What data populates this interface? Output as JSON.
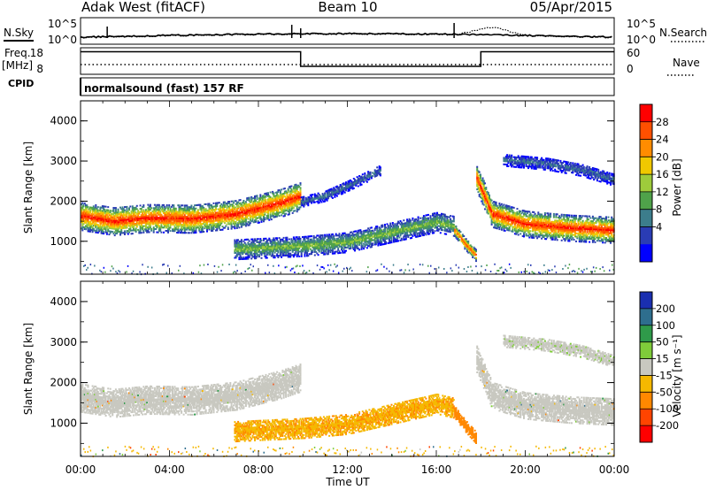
{
  "header": {
    "station": "Adak West (fitACF)",
    "beam": "Beam 10",
    "date": "05/Apr/2015"
  },
  "top_panels": {
    "nsky_label": "N.Sky",
    "nsearch_label": "N.Search",
    "nsky_ticks": [
      "10^5",
      "10^0"
    ],
    "nsearch_ticks": [
      "10^5",
      "10^0"
    ],
    "freq_label": "Freq.",
    "freq_unit": "[MHz]",
    "freq_ticks": [
      "18",
      "8"
    ],
    "nave_label": "Nave",
    "nave_ticks": [
      "60",
      "0"
    ],
    "cpid_label": "CPID",
    "cpid_text": "normalsound (fast) 157 RF"
  },
  "axes": {
    "x_label": "Time UT",
    "x_ticks": [
      "00:00",
      "04:00",
      "08:00",
      "12:00",
      "16:00",
      "20:00",
      "00:00"
    ],
    "y_label": "Slant Range [km]",
    "y_ticks": [
      "4000",
      "3000",
      "2000",
      "1000"
    ]
  },
  "power_colorbar": {
    "label": "Power [dB]",
    "ticks": [
      "28",
      "24",
      "20",
      "16",
      "12",
      "8",
      "4"
    ],
    "colors": [
      "#0000ff",
      "#2a3cb4",
      "#3c7d8c",
      "#4fa24a",
      "#9ecb3b",
      "#f0c800",
      "#ff8c00",
      "#ff5000",
      "#ff0000"
    ]
  },
  "velocity_colorbar": {
    "label": "Velocity [m s⁻¹]",
    "ticks": [
      "200",
      "100",
      "50",
      "15",
      "-15",
      "-50",
      "-100",
      "-200"
    ],
    "colors": [
      "#1a2fb0",
      "#2e6e8e",
      "#2f9a4a",
      "#7fcc3a",
      "#c8c8c0",
      "#f5b800",
      "#ff8800",
      "#ff4400",
      "#ff0000"
    ]
  },
  "chart_data": [
    {
      "type": "line",
      "name": "N.Sky / N.Search",
      "x_range_hours": [
        0,
        24
      ],
      "y_scale": "log",
      "ylim": [
        "10^0",
        "10^5"
      ]
    },
    {
      "type": "line",
      "name": "Freq / Nave",
      "x": [
        0,
        9.9,
        9.9,
        18.0,
        18.0,
        24
      ],
      "freq_mhz": [
        16.5,
        16.5,
        11.0,
        11.0,
        16.5,
        16.5
      ],
      "ylim": [
        8,
        18
      ],
      "x_unit": "hours UT"
    },
    {
      "type": "heatmap",
      "name": "Power",
      "x_label": "Time UT",
      "y_label": "Slant Range [km]",
      "x_range_hours": [
        0,
        24
      ],
      "ylim_km": [
        180,
        4500
      ],
      "color_scale_db": [
        0,
        30
      ],
      "bands": [
        {
          "x": [
            0,
            1.5,
            3,
            5,
            7,
            9,
            9.9
          ],
          "center_km": [
            1650,
            1520,
            1600,
            1580,
            1700,
            1980,
            2150
          ],
          "width_km": 700,
          "peak_db": 28
        },
        {
          "x": [
            6.9,
            8,
            10,
            12,
            14,
            16,
            16.8
          ],
          "center_km": [
            820,
            850,
            900,
            1000,
            1250,
            1500,
            1400
          ],
          "width_km": 500,
          "peak_db": 14
        },
        {
          "x": [
            9.9,
            11,
            12,
            13.5
          ],
          "center_km": [
            2000,
            2150,
            2400,
            2800
          ],
          "width_km": 250,
          "peak_db": 8
        },
        {
          "x": [
            16.8,
            17.3,
            17.8
          ],
          "center_km": [
            1300,
            950,
            650
          ],
          "width_km": 300,
          "peak_db": 26
        },
        {
          "x": [
            17.8,
            18.5,
            20,
            22,
            24
          ],
          "center_km": [
            2600,
            1700,
            1450,
            1350,
            1300
          ],
          "width_km": 650,
          "peak_db": 28
        },
        {
          "x": [
            19,
            21,
            22.5,
            24
          ],
          "center_km": [
            3050,
            2950,
            2800,
            2550
          ],
          "width_km": 300,
          "peak_db": 8
        }
      ]
    },
    {
      "type": "heatmap",
      "name": "Velocity",
      "x_label": "Time UT",
      "y_label": "Slant Range [km]",
      "x_range_hours": [
        0,
        24
      ],
      "ylim_km": [
        180,
        4500
      ],
      "color_scale_ms": [
        -200,
        200
      ],
      "bands": [
        {
          "x": [
            0,
            1.5,
            3,
            5,
            7,
            9,
            9.9
          ],
          "center_km": [
            1650,
            1520,
            1600,
            1580,
            1700,
            1980,
            2150
          ],
          "width_km": 700,
          "velocity_ms": 0
        },
        {
          "x": [
            6.9,
            8,
            10,
            12,
            14,
            16,
            16.8
          ],
          "center_km": [
            820,
            850,
            900,
            1000,
            1250,
            1500,
            1400
          ],
          "width_km": 500,
          "velocity_ms": -60
        },
        {
          "x": [
            16.8,
            17.3,
            17.8
          ],
          "center_km": [
            1300,
            950,
            650
          ],
          "width_km": 300,
          "velocity_ms": -90
        },
        {
          "x": [
            17.8,
            18.5,
            20,
            22,
            24
          ],
          "center_km": [
            2600,
            1700,
            1450,
            1350,
            1300
          ],
          "width_km": 650,
          "velocity_ms": 0
        },
        {
          "x": [
            19,
            21,
            22.5,
            24
          ],
          "center_km": [
            3050,
            2950,
            2800,
            2550
          ],
          "width_km": 300,
          "velocity_ms": 10
        }
      ]
    }
  ]
}
